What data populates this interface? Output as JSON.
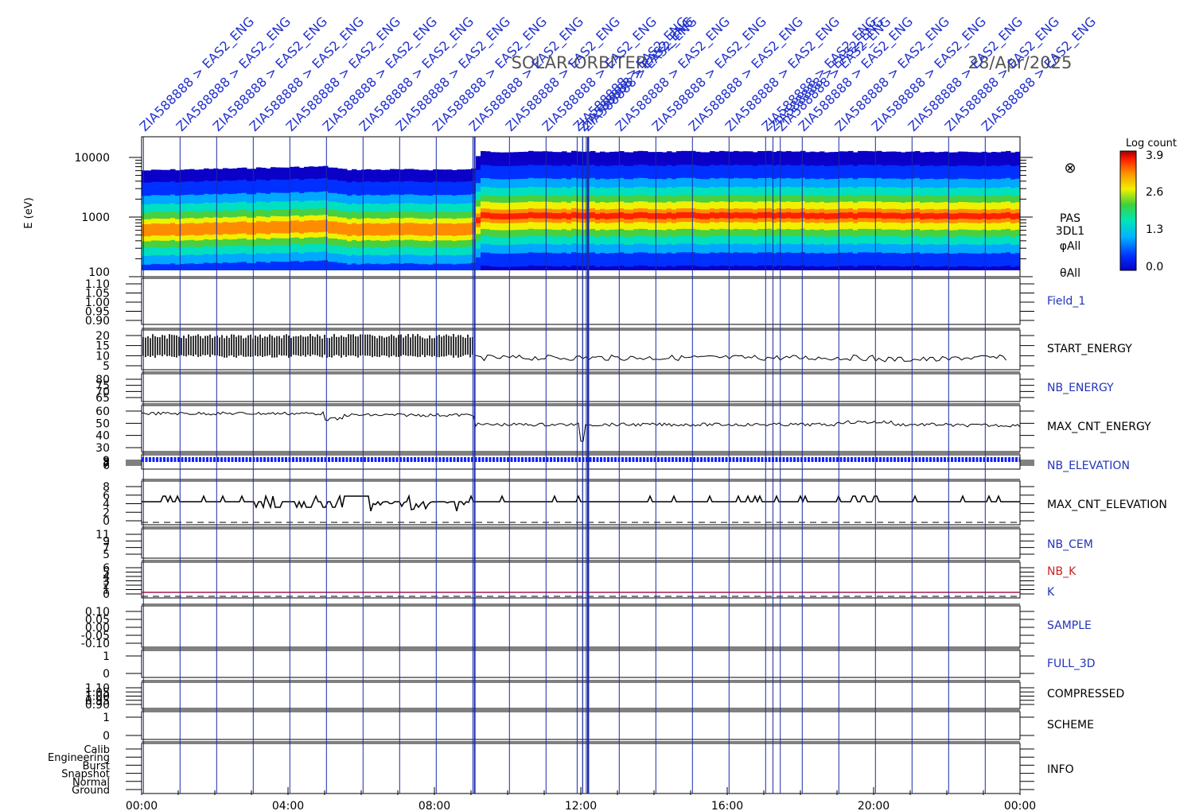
{
  "header": {
    "mission": "SOLAR-ORBITER",
    "date": "28/Apr/2025"
  },
  "top_annotations": {
    "prefix": "ZIA588888 > EAS2_ENG",
    "marker_hours": [
      0.05,
      1.05,
      2.05,
      3.05,
      4.05,
      5.05,
      6.05,
      7.05,
      8.05,
      9.05,
      10.05,
      11.05,
      12.05,
      13.05,
      14.05,
      15.05,
      16.05,
      17.05,
      18.05,
      19.05,
      20.05,
      21.05,
      22.05,
      23.05
    ],
    "extra_hours": [
      11.9,
      12.05,
      12.15,
      17.25,
      17.45
    ]
  },
  "spectrogram": {
    "ylabel": "E (eV)",
    "yticks": [
      "100",
      "1000",
      "10000"
    ],
    "side_labels": [
      "PAS",
      "3DL1",
      "φAll",
      "θAll"
    ],
    "symbol": "⊗"
  },
  "colorbar": {
    "title": "Log count",
    "ticks": [
      "3.9",
      "2.6",
      "1.3",
      "0.0"
    ]
  },
  "panels": [
    {
      "key": "field1",
      "label": "Field_1",
      "label_color": "#2233bb",
      "ticks": [
        "1.10",
        "1.05",
        "1.00",
        "0.95",
        "0.90"
      ]
    },
    {
      "key": "start_energy",
      "label": "START_ENERGY",
      "label_color": "#000000",
      "ticks": [
        "20",
        "15",
        "10",
        "5"
      ]
    },
    {
      "key": "nb_energy",
      "label": "NB_ENERGY",
      "label_color": "#2233bb",
      "ticks": [
        "80",
        "75",
        "70",
        "65"
      ]
    },
    {
      "key": "max_cnt_energy",
      "label": "MAX_CNT_ENERGY",
      "label_color": "#000000",
      "ticks": [
        "60",
        "50",
        "40",
        "30"
      ]
    },
    {
      "key": "nb_elevation",
      "label": "NB_ELEVATION",
      "label_color": "#2233bb",
      "ticks": [
        "9",
        "8",
        "7",
        "6"
      ]
    },
    {
      "key": "max_cnt_elevation",
      "label": "MAX_CNT_ELEVATION",
      "label_color": "#000000",
      "ticks": [
        "8",
        "6",
        "4",
        "2",
        "0"
      ]
    },
    {
      "key": "nb_cem",
      "label": "NB_CEM",
      "label_color": "#2233bb",
      "ticks": [
        "11",
        "9",
        "7",
        "5"
      ]
    },
    {
      "key": "nb_k",
      "label": "NB_K",
      "label_color": "#cc2222",
      "label2": "K",
      "label2_color": "#2233bb",
      "ticks": [
        "6",
        "5",
        "4",
        "3",
        "2",
        "1",
        "0"
      ]
    },
    {
      "key": "sample",
      "label": "SAMPLE",
      "label_color": "#2233bb",
      "ticks": [
        "0.10",
        "0.05",
        "0.00",
        "-0.05",
        "-0.10"
      ]
    },
    {
      "key": "full_3d",
      "label": "FULL_3D",
      "label_color": "#2233bb",
      "ticks": [
        "1",
        "0"
      ]
    },
    {
      "key": "compressed",
      "label": "COMPRESSED",
      "label_color": "#000000",
      "ticks": [
        "1.10",
        "1.05",
        "1.00",
        "0.95",
        "0.90"
      ]
    },
    {
      "key": "scheme",
      "label": "SCHEME",
      "label_color": "#000000",
      "ticks": [
        "1",
        "0"
      ]
    },
    {
      "key": "info",
      "label": "INFO",
      "label_color": "#000000",
      "ticks": [
        "Calib",
        "Engineering",
        "Burst",
        "Snapshot",
        "Normal",
        "Ground"
      ]
    }
  ],
  "chart_data": {
    "type": "heatmap",
    "title": "SOLAR-ORBITER",
    "xlabel": "",
    "ylabel": "E (eV)",
    "x_ticks": [
      "00:00",
      "04:00",
      "08:00",
      "12:00",
      "16:00",
      "20:00",
      "00:00"
    ],
    "xlim_hours": [
      0,
      24
    ],
    "ylim_ev": [
      100,
      15000
    ],
    "y_scale": "log",
    "colorbar_range": [
      0.0,
      3.9
    ],
    "peak_energy_ev": [
      {
        "hour": 0,
        "ev": 600
      },
      {
        "hour": 5,
        "ev": 700
      },
      {
        "hour": 5.5,
        "ev": 620
      },
      {
        "hour": 9,
        "ev": 620
      },
      {
        "hour": 9.2,
        "ev": 1050
      },
      {
        "hour": 24,
        "ev": 1050
      }
    ],
    "series": [
      {
        "name": "START_ENERGY",
        "x_hours": [
          0,
          9.1,
          9.2,
          24
        ],
        "values": [
          14,
          14,
          9,
          8
        ]
      },
      {
        "name": "MAX_CNT_ENERGY",
        "x_hours": [
          0,
          5,
          5.5,
          9,
          9.1,
          24
        ],
        "values": [
          58,
          58,
          57,
          56,
          50,
          47
        ]
      },
      {
        "name": "NB_ELEVATION",
        "x_hours": [
          0,
          24
        ],
        "values": [
          9,
          9
        ]
      },
      {
        "name": "MAX_CNT_ELEVATION",
        "x_hours": [
          0,
          5.5,
          6,
          9,
          24
        ],
        "values": [
          4,
          5,
          4,
          4,
          4
        ]
      },
      {
        "name": "NB_K",
        "x_hours": [
          0,
          24
        ],
        "values": [
          0.5,
          0.5
        ]
      }
    ],
    "grid": true
  }
}
